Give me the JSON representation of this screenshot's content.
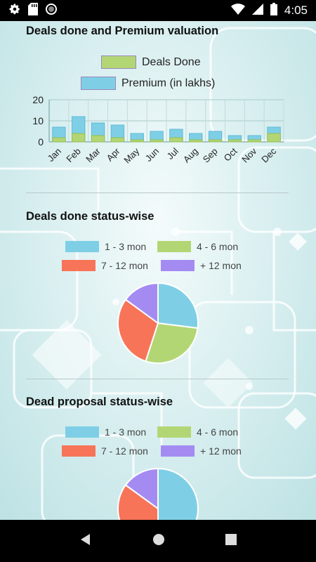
{
  "status_bar": {
    "time": "4:05",
    "icons_left": [
      "gear-icon",
      "sd-card-icon",
      "circle-icon"
    ],
    "icons_right": [
      "wifi-icon",
      "signal-icon",
      "battery-icon"
    ]
  },
  "sections": {
    "deals_premium": {
      "title": "Deals done and Premium valuation",
      "legend": [
        "Deals Done",
        "Premium (in lakhs)"
      ]
    },
    "deals_status": {
      "title": "Deals done status-wise",
      "legend": [
        "1 - 3 mon",
        "4 - 6 mon",
        "7 - 12 mon",
        "+ 12 mon"
      ]
    },
    "dead_proposal": {
      "title": "Dead proposal status-wise",
      "legend": [
        "1 - 3 mon",
        "4 - 6 mon",
        "7 - 12 mon",
        "+ 12 mon"
      ]
    }
  },
  "colors": {
    "blue": "#7ecfe6",
    "green": "#b3d675",
    "orange": "#f77458",
    "purple": "#a48bf2"
  },
  "chart_data": [
    {
      "type": "bar",
      "categories": [
        "Jan",
        "Feb",
        "Mar",
        "Apr",
        "May",
        "Jun",
        "Jul",
        "Aug",
        "Sep",
        "Oct",
        "Nov",
        "Dec"
      ],
      "series": [
        {
          "name": "Deals Done",
          "values": [
            2,
            4,
            3,
            2,
            1,
            1,
            2,
            1,
            1,
            1,
            1,
            4
          ]
        },
        {
          "name": "Premium (in lakhs)",
          "values": [
            7,
            12,
            9,
            8,
            4,
            5,
            6,
            4,
            5,
            3,
            3,
            7
          ]
        }
      ],
      "y_ticks": [
        0,
        10,
        20
      ],
      "ylim": [
        0,
        20
      ]
    },
    {
      "type": "pie",
      "labels": [
        "1 - 3 mon",
        "4 - 6 mon",
        "7 - 12 mon",
        "+ 12 mon"
      ],
      "values": [
        27,
        28,
        30,
        15
      ]
    },
    {
      "type": "pie",
      "labels": [
        "1 - 3 mon",
        "4 - 6 mon",
        "7 - 12 mon",
        "+ 12 mon"
      ],
      "values": [
        50,
        0,
        35,
        15
      ]
    }
  ]
}
